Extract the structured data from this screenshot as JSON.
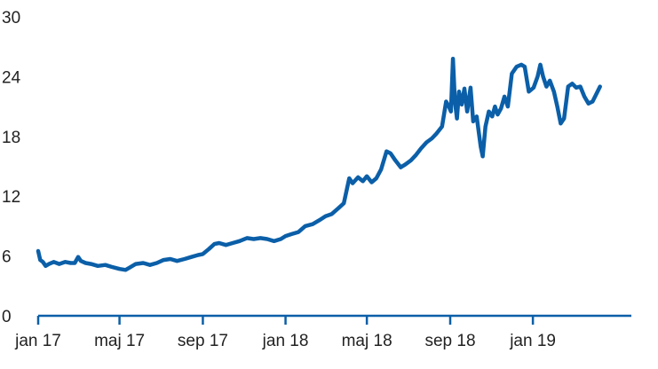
{
  "colors": {
    "line": "#0b5fa8",
    "axis": "#0b5fa8",
    "text": "#222222",
    "background": "#ffffff"
  },
  "chart_data": {
    "type": "line",
    "title": "",
    "xlabel": "",
    "ylabel": "",
    "ylim": [
      0,
      30
    ],
    "yticks": [
      0,
      6,
      12,
      18,
      24,
      30
    ],
    "ytick_labels": [
      "0",
      "6",
      "12",
      "18",
      "24",
      "30"
    ],
    "xlim": [
      "2017-01-01",
      "2019-05-25"
    ],
    "xticks": [
      "2017-01-01",
      "2017-05-01",
      "2017-09-01",
      "2018-01-01",
      "2018-05-01",
      "2018-09-01",
      "2019-01-01"
    ],
    "xtick_labels": [
      "jan 17",
      "maj 17",
      "sep 17",
      "jan 18",
      "maj 18",
      "sep 18",
      "jan 19"
    ],
    "grid": false,
    "legend": "none",
    "series": [
      {
        "points": [
          [
            "2017-01-01",
            6.5
          ],
          [
            "2017-01-04",
            5.6
          ],
          [
            "2017-01-08",
            5.4
          ],
          [
            "2017-01-12",
            5.0
          ],
          [
            "2017-01-17",
            5.2
          ],
          [
            "2017-01-24",
            5.4
          ],
          [
            "2017-02-01",
            5.2
          ],
          [
            "2017-02-10",
            5.4
          ],
          [
            "2017-02-18",
            5.3
          ],
          [
            "2017-02-24",
            5.3
          ],
          [
            "2017-03-01",
            5.9
          ],
          [
            "2017-03-05",
            5.5
          ],
          [
            "2017-03-12",
            5.3
          ],
          [
            "2017-03-20",
            5.2
          ],
          [
            "2017-03-30",
            5.0
          ],
          [
            "2017-04-10",
            5.1
          ],
          [
            "2017-04-20",
            4.9
          ],
          [
            "2017-05-01",
            4.7
          ],
          [
            "2017-05-10",
            4.6
          ],
          [
            "2017-05-15",
            4.8
          ],
          [
            "2017-05-25",
            5.2
          ],
          [
            "2017-06-05",
            5.3
          ],
          [
            "2017-06-15",
            5.1
          ],
          [
            "2017-06-25",
            5.3
          ],
          [
            "2017-07-05",
            5.6
          ],
          [
            "2017-07-15",
            5.7
          ],
          [
            "2017-07-25",
            5.5
          ],
          [
            "2017-08-05",
            5.7
          ],
          [
            "2017-08-15",
            5.9
          ],
          [
            "2017-08-25",
            6.1
          ],
          [
            "2017-09-01",
            6.2
          ],
          [
            "2017-09-10",
            6.7
          ],
          [
            "2017-09-18",
            7.2
          ],
          [
            "2017-09-25",
            7.3
          ],
          [
            "2017-10-05",
            7.1
          ],
          [
            "2017-10-15",
            7.3
          ],
          [
            "2017-10-25",
            7.5
          ],
          [
            "2017-11-05",
            7.8
          ],
          [
            "2017-11-15",
            7.7
          ],
          [
            "2017-11-25",
            7.8
          ],
          [
            "2017-12-05",
            7.7
          ],
          [
            "2017-12-15",
            7.5
          ],
          [
            "2017-12-25",
            7.7
          ],
          [
            "2018-01-01",
            8.0
          ],
          [
            "2018-01-10",
            8.2
          ],
          [
            "2018-01-20",
            8.4
          ],
          [
            "2018-01-30",
            9.0
          ],
          [
            "2018-02-10",
            9.2
          ],
          [
            "2018-02-20",
            9.6
          ],
          [
            "2018-03-01",
            10.0
          ],
          [
            "2018-03-10",
            10.2
          ],
          [
            "2018-03-20",
            10.8
          ],
          [
            "2018-03-28",
            11.3
          ],
          [
            "2018-04-05",
            13.8
          ],
          [
            "2018-04-10",
            13.3
          ],
          [
            "2018-04-18",
            13.9
          ],
          [
            "2018-04-25",
            13.5
          ],
          [
            "2018-05-01",
            14.0
          ],
          [
            "2018-05-08",
            13.4
          ],
          [
            "2018-05-15",
            13.8
          ],
          [
            "2018-05-22",
            14.7
          ],
          [
            "2018-05-30",
            16.5
          ],
          [
            "2018-06-05",
            16.3
          ],
          [
            "2018-06-12",
            15.6
          ],
          [
            "2018-06-20",
            14.9
          ],
          [
            "2018-06-27",
            15.2
          ],
          [
            "2018-07-05",
            15.6
          ],
          [
            "2018-07-12",
            16.1
          ],
          [
            "2018-07-20",
            16.8
          ],
          [
            "2018-07-28",
            17.4
          ],
          [
            "2018-08-05",
            17.8
          ],
          [
            "2018-08-12",
            18.3
          ],
          [
            "2018-08-20",
            19.0
          ],
          [
            "2018-08-26",
            21.5
          ],
          [
            "2018-08-30",
            21.0
          ],
          [
            "2018-09-02",
            20.5
          ],
          [
            "2018-09-05",
            25.8
          ],
          [
            "2018-09-08",
            21.5
          ],
          [
            "2018-09-11",
            19.8
          ],
          [
            "2018-09-14",
            22.5
          ],
          [
            "2018-09-18",
            21.2
          ],
          [
            "2018-09-22",
            22.8
          ],
          [
            "2018-09-26",
            20.5
          ],
          [
            "2018-10-01",
            22.9
          ],
          [
            "2018-10-05",
            19.5
          ],
          [
            "2018-10-10",
            20.0
          ],
          [
            "2018-10-16",
            17.0
          ],
          [
            "2018-10-19",
            16.0
          ],
          [
            "2018-10-23",
            19.0
          ],
          [
            "2018-10-28",
            20.5
          ],
          [
            "2018-11-02",
            20.0
          ],
          [
            "2018-11-06",
            21.0
          ],
          [
            "2018-11-10",
            20.2
          ],
          [
            "2018-11-15",
            20.8
          ],
          [
            "2018-11-20",
            22.0
          ],
          [
            "2018-11-25",
            21.0
          ],
          [
            "2018-12-01",
            24.3
          ],
          [
            "2018-12-08",
            25.0
          ],
          [
            "2018-12-15",
            25.2
          ],
          [
            "2018-12-20",
            25.0
          ],
          [
            "2018-12-26",
            22.5
          ],
          [
            "2019-01-02",
            22.9
          ],
          [
            "2019-01-08",
            24.0
          ],
          [
            "2019-01-12",
            25.2
          ],
          [
            "2019-01-16",
            24.0
          ],
          [
            "2019-01-21",
            23.0
          ],
          [
            "2019-01-26",
            23.6
          ],
          [
            "2019-02-01",
            22.5
          ],
          [
            "2019-02-06",
            21.0
          ],
          [
            "2019-02-11",
            19.3
          ],
          [
            "2019-02-16",
            19.8
          ],
          [
            "2019-02-22",
            23.0
          ],
          [
            "2019-02-28",
            23.3
          ],
          [
            "2019-03-06",
            22.9
          ],
          [
            "2019-03-12",
            23.0
          ],
          [
            "2019-03-18",
            22.0
          ],
          [
            "2019-03-24",
            21.3
          ],
          [
            "2019-03-30",
            21.5
          ],
          [
            "2019-04-05",
            22.3
          ],
          [
            "2019-04-10",
            23.0
          ]
        ]
      }
    ]
  }
}
